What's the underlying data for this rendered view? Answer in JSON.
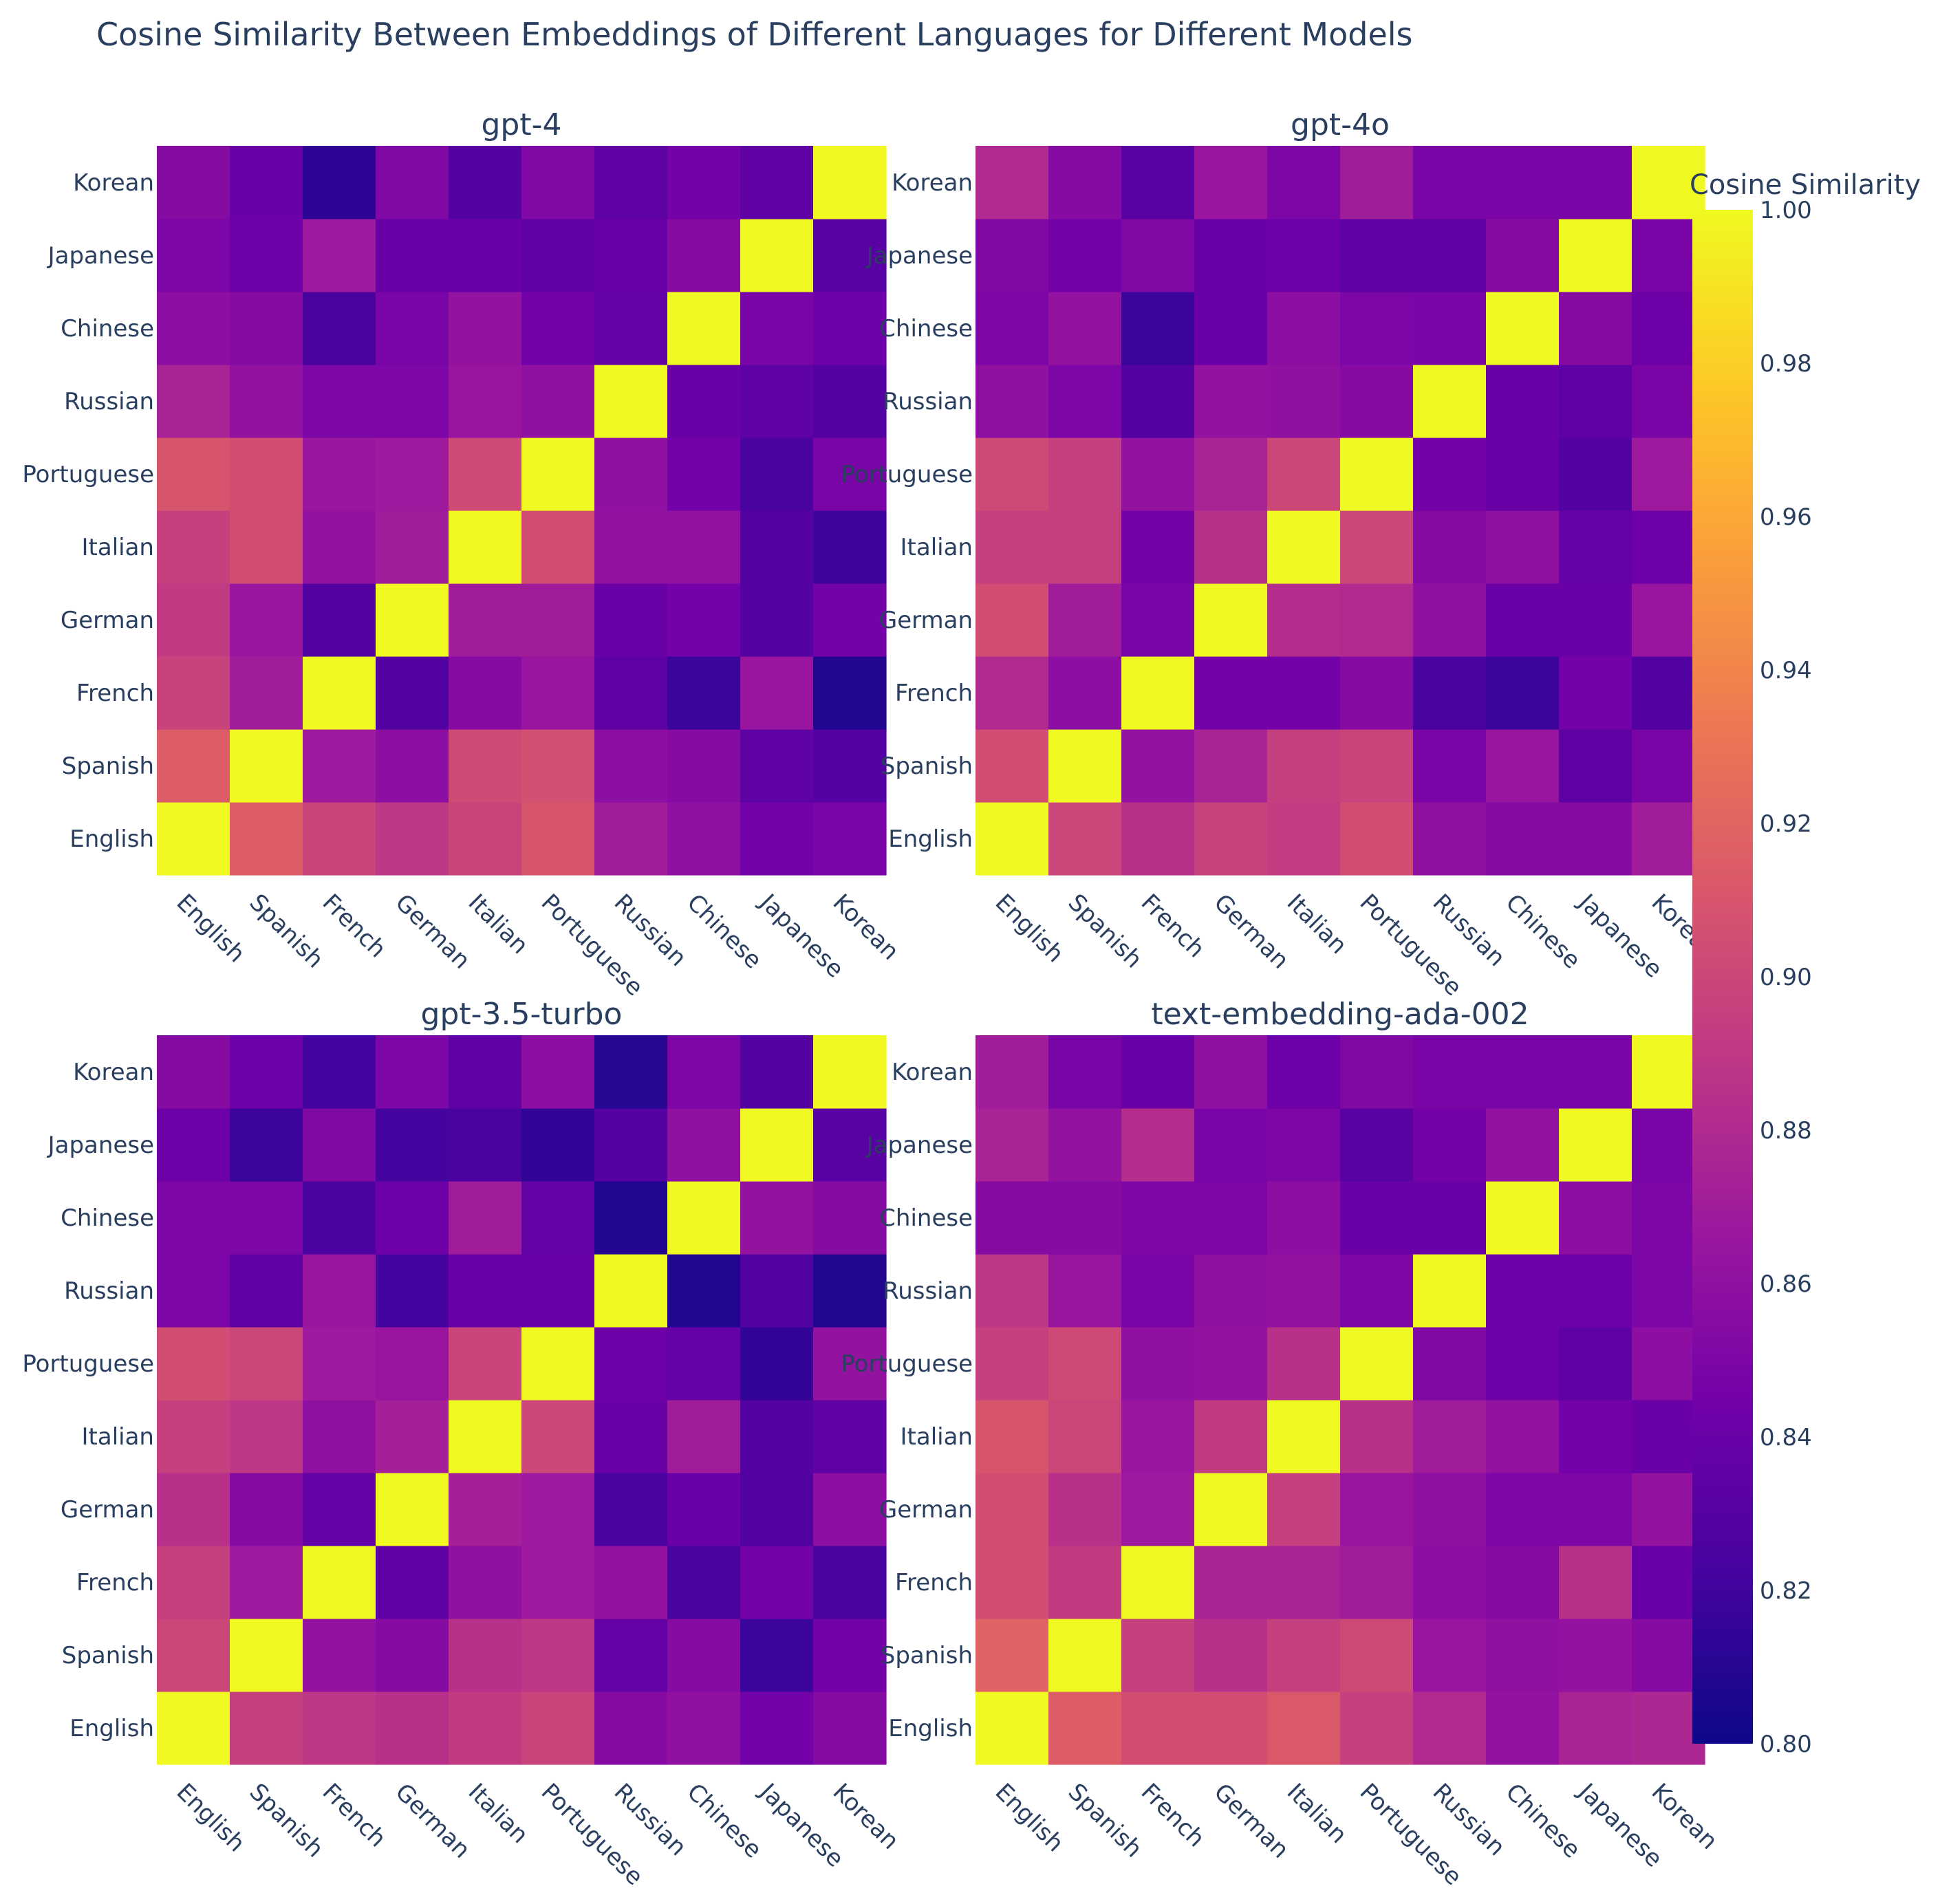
{
  "chart_data": {
    "type": "heatmap",
    "title": "Cosine Similarity Between Embeddings of Different Languages for Different Models",
    "languages": [
      "English",
      "Spanish",
      "French",
      "German",
      "Italian",
      "Portuguese",
      "Russian",
      "Chinese",
      "Japanese",
      "Korean"
    ],
    "colorbar": {
      "title": "Cosine Similarity",
      "range": [
        0.8,
        1.0
      ],
      "ticks": [
        "0.80",
        "0.82",
        "0.84",
        "0.86",
        "0.88",
        "0.90",
        "0.92",
        "0.94",
        "0.96",
        "0.98",
        "1.00"
      ],
      "colorscale": [
        "#0d0887",
        "#46039f",
        "#7201a8",
        "#9c179e",
        "#bd3786",
        "#d8576b",
        "#ed7953",
        "#fb9f3a",
        "#fdca26",
        "#f0f921"
      ]
    },
    "models": [
      {
        "name": "gpt-4",
        "rows": [
          [
            1.0,
            0.915,
            0.898,
            0.89,
            0.898,
            0.91,
            0.87,
            0.86,
            0.845,
            0.848
          ],
          [
            0.915,
            1.0,
            0.868,
            0.858,
            0.903,
            0.906,
            0.858,
            0.855,
            0.835,
            0.83
          ],
          [
            0.897,
            0.87,
            1.0,
            0.828,
            0.855,
            0.865,
            0.835,
            0.818,
            0.865,
            0.808
          ],
          [
            0.892,
            0.866,
            0.828,
            1.0,
            0.87,
            0.87,
            0.84,
            0.845,
            0.83,
            0.845
          ],
          [
            0.895,
            0.905,
            0.862,
            0.87,
            1.0,
            0.905,
            0.862,
            0.862,
            0.83,
            0.82
          ],
          [
            0.91,
            0.905,
            0.866,
            0.868,
            0.903,
            1.0,
            0.86,
            0.845,
            0.825,
            0.848
          ],
          [
            0.875,
            0.862,
            0.85,
            0.85,
            0.865,
            0.86,
            1.0,
            0.84,
            0.835,
            0.83
          ],
          [
            0.858,
            0.855,
            0.825,
            0.848,
            0.862,
            0.845,
            0.838,
            1.0,
            0.848,
            0.842
          ],
          [
            0.85,
            0.842,
            0.868,
            0.84,
            0.84,
            0.835,
            0.84,
            0.855,
            1.0,
            0.832
          ],
          [
            0.855,
            0.84,
            0.812,
            0.852,
            0.83,
            0.852,
            0.835,
            0.845,
            0.835,
            1.0
          ]
        ]
      },
      {
        "name": "gpt-4o",
        "rows": [
          [
            1.0,
            0.9,
            0.885,
            0.897,
            0.893,
            0.905,
            0.86,
            0.855,
            0.855,
            0.87
          ],
          [
            0.905,
            1.0,
            0.862,
            0.875,
            0.895,
            0.898,
            0.848,
            0.865,
            0.835,
            0.848
          ],
          [
            0.88,
            0.858,
            1.0,
            0.845,
            0.845,
            0.855,
            0.825,
            0.818,
            0.845,
            0.828
          ],
          [
            0.905,
            0.87,
            0.848,
            1.0,
            0.882,
            0.88,
            0.86,
            0.84,
            0.84,
            0.865
          ],
          [
            0.895,
            0.895,
            0.845,
            0.885,
            1.0,
            0.9,
            0.855,
            0.86,
            0.838,
            0.842
          ],
          [
            0.902,
            0.895,
            0.862,
            0.875,
            0.9,
            1.0,
            0.845,
            0.84,
            0.83,
            0.868
          ],
          [
            0.86,
            0.85,
            0.83,
            0.862,
            0.86,
            0.855,
            1.0,
            0.84,
            0.835,
            0.848
          ],
          [
            0.85,
            0.862,
            0.818,
            0.84,
            0.858,
            0.85,
            0.848,
            1.0,
            0.855,
            0.842
          ],
          [
            0.852,
            0.845,
            0.852,
            0.84,
            0.842,
            0.835,
            0.835,
            0.855,
            1.0,
            0.848
          ],
          [
            0.88,
            0.855,
            0.832,
            0.865,
            0.85,
            0.87,
            0.848,
            0.848,
            0.848,
            1.0
          ]
        ]
      },
      {
        "name": "gpt-3.5-turbo",
        "rows": [
          [
            1.0,
            0.895,
            0.89,
            0.885,
            0.892,
            0.898,
            0.855,
            0.86,
            0.845,
            0.855
          ],
          [
            0.9,
            1.0,
            0.862,
            0.855,
            0.885,
            0.89,
            0.838,
            0.855,
            0.818,
            0.845
          ],
          [
            0.895,
            0.868,
            1.0,
            0.835,
            0.86,
            0.868,
            0.862,
            0.825,
            0.845,
            0.825
          ],
          [
            0.885,
            0.855,
            0.838,
            1.0,
            0.872,
            0.868,
            0.825,
            0.84,
            0.828,
            0.858
          ],
          [
            0.895,
            0.89,
            0.86,
            0.872,
            1.0,
            0.9,
            0.84,
            0.87,
            0.83,
            0.835
          ],
          [
            0.905,
            0.9,
            0.868,
            0.865,
            0.898,
            1.0,
            0.842,
            0.838,
            0.815,
            0.862
          ],
          [
            0.85,
            0.835,
            0.865,
            0.822,
            0.84,
            0.84,
            1.0,
            0.808,
            0.828,
            0.808
          ],
          [
            0.85,
            0.85,
            0.825,
            0.842,
            0.87,
            0.838,
            0.808,
            1.0,
            0.862,
            0.855
          ],
          [
            0.842,
            0.818,
            0.852,
            0.822,
            0.825,
            0.815,
            0.83,
            0.86,
            1.0,
            0.832
          ],
          [
            0.855,
            0.842,
            0.822,
            0.85,
            0.835,
            0.858,
            0.81,
            0.85,
            0.83,
            1.0
          ]
        ]
      },
      {
        "name": "text-embedding-ada-002",
        "rows": [
          [
            1.0,
            0.915,
            0.905,
            0.905,
            0.912,
            0.895,
            0.88,
            0.862,
            0.875,
            0.878
          ],
          [
            0.918,
            1.0,
            0.895,
            0.885,
            0.895,
            0.902,
            0.865,
            0.86,
            0.862,
            0.855
          ],
          [
            0.905,
            0.892,
            1.0,
            0.875,
            0.875,
            0.87,
            0.858,
            0.855,
            0.885,
            0.84
          ],
          [
            0.905,
            0.885,
            0.868,
            1.0,
            0.895,
            0.865,
            0.86,
            0.85,
            0.85,
            0.862
          ],
          [
            0.91,
            0.9,
            0.865,
            0.892,
            1.0,
            0.885,
            0.87,
            0.862,
            0.845,
            0.84
          ],
          [
            0.895,
            0.902,
            0.86,
            0.862,
            0.885,
            1.0,
            0.852,
            0.842,
            0.835,
            0.858
          ],
          [
            0.89,
            0.865,
            0.848,
            0.86,
            0.862,
            0.85,
            1.0,
            0.842,
            0.842,
            0.85
          ],
          [
            0.855,
            0.855,
            0.85,
            0.85,
            0.858,
            0.84,
            0.84,
            1.0,
            0.858,
            0.85
          ],
          [
            0.875,
            0.862,
            0.882,
            0.848,
            0.85,
            0.832,
            0.845,
            0.862,
            1.0,
            0.848
          ],
          [
            0.87,
            0.848,
            0.84,
            0.86,
            0.842,
            0.852,
            0.848,
            0.848,
            0.848,
            1.0
          ]
        ]
      }
    ]
  }
}
